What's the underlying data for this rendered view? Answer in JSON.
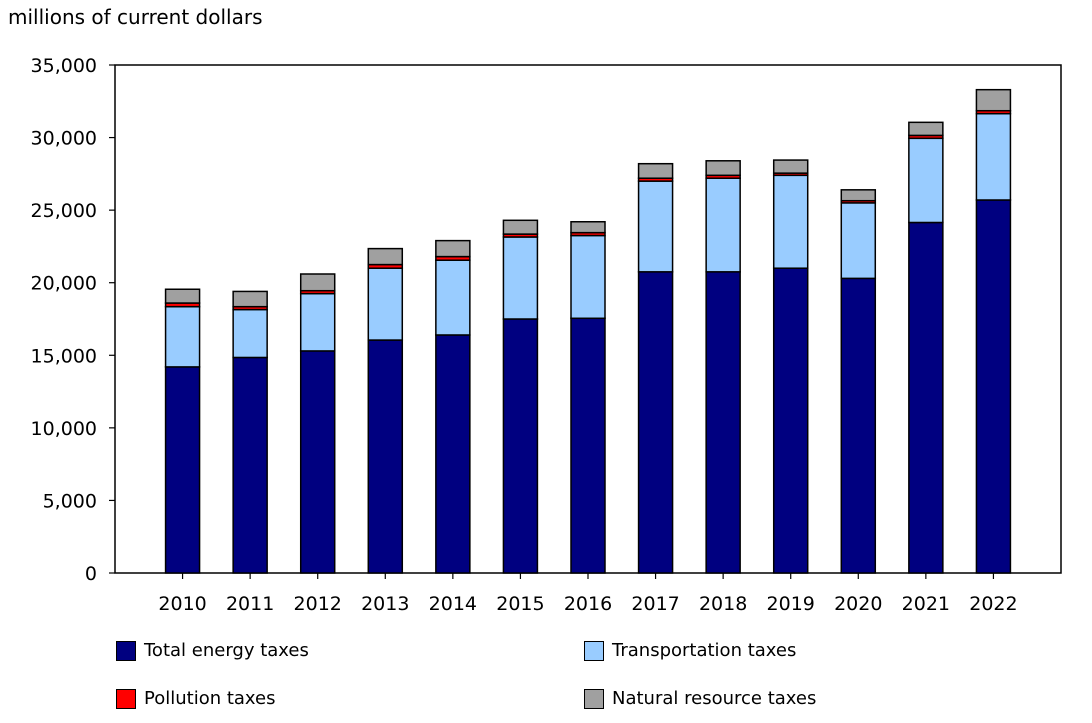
{
  "chart_data": {
    "type": "bar",
    "stacked": true,
    "title": "",
    "xlabel": "",
    "ylabel": "millions of current dollars",
    "ylim": [
      0,
      35000
    ],
    "yticks": [
      0,
      5000,
      10000,
      15000,
      20000,
      25000,
      30000,
      35000
    ],
    "ytick_labels": [
      "0",
      "5,000",
      "10,000",
      "15,000",
      "20,000",
      "25,000",
      "30,000",
      "35,000"
    ],
    "grid": false,
    "legend_position": "bottom",
    "categories": [
      "2010",
      "2011",
      "2012",
      "2013",
      "2014",
      "2015",
      "2016",
      "2017",
      "2018",
      "2019",
      "2020",
      "2021",
      "2022"
    ],
    "series": [
      {
        "name": "Total energy taxes",
        "color": "#000080",
        "values": [
          14200,
          14850,
          15300,
          16050,
          16400,
          17500,
          17550,
          20750,
          20750,
          21000,
          20300,
          24150,
          25700
        ]
      },
      {
        "name": "Transportation taxes",
        "color": "#99ccff",
        "values": [
          4150,
          3300,
          3950,
          4950,
          5150,
          5650,
          5700,
          6250,
          6450,
          6400,
          5200,
          5800,
          5950
        ]
      },
      {
        "name": "Pollution taxes",
        "color": "#ff0000",
        "values": [
          250,
          200,
          200,
          250,
          250,
          200,
          200,
          200,
          200,
          150,
          150,
          200,
          200
        ]
      },
      {
        "name": "Natural resource taxes",
        "color": "#a0a0a0",
        "values": [
          950,
          1050,
          1150,
          1100,
          1100,
          950,
          750,
          1000,
          1000,
          900,
          750,
          900,
          1450
        ]
      }
    ]
  }
}
